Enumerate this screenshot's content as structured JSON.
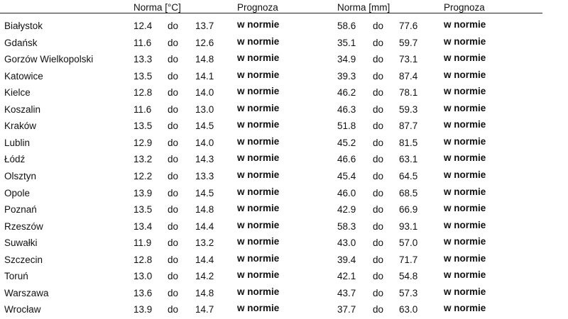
{
  "header": {
    "temp_norm": "Norma [°C]",
    "temp_forecast": "Prognoza",
    "precip_norm": "Norma [mm]",
    "precip_forecast": "Prognoza"
  },
  "range_word": "do",
  "rows": [
    {
      "city": "Białystok",
      "t_min": "12.4",
      "t_max": "13.7",
      "t_prog": "w normie",
      "p_min": "58.6",
      "p_max": "77.6",
      "p_prog": "w normie"
    },
    {
      "city": "Gdańsk",
      "t_min": "11.6",
      "t_max": "12.6",
      "t_prog": "w normie",
      "p_min": "35.1",
      "p_max": "59.7",
      "p_prog": "w normie"
    },
    {
      "city": "Gorzów Wielkopolski",
      "t_min": "13.3",
      "t_max": "14.8",
      "t_prog": "w normie",
      "p_min": "34.9",
      "p_max": "73.1",
      "p_prog": "w normie"
    },
    {
      "city": "Katowice",
      "t_min": "13.5",
      "t_max": "14.1",
      "t_prog": "w normie",
      "p_min": "39.3",
      "p_max": "87.4",
      "p_prog": "w normie"
    },
    {
      "city": "Kielce",
      "t_min": "12.8",
      "t_max": "14.0",
      "t_prog": "w normie",
      "p_min": "46.2",
      "p_max": "78.1",
      "p_prog": "w normie"
    },
    {
      "city": "Koszalin",
      "t_min": "11.6",
      "t_max": "13.0",
      "t_prog": "w normie",
      "p_min": "46.3",
      "p_max": "59.3",
      "p_prog": "w normie"
    },
    {
      "city": "Kraków",
      "t_min": "13.5",
      "t_max": "14.5",
      "t_prog": "w normie",
      "p_min": "51.8",
      "p_max": "87.7",
      "p_prog": "w normie"
    },
    {
      "city": "Lublin",
      "t_min": "12.9",
      "t_max": "14.0",
      "t_prog": "w normie",
      "p_min": "45.2",
      "p_max": "81.5",
      "p_prog": "w normie"
    },
    {
      "city": "Łódź",
      "t_min": "13.2",
      "t_max": "14.3",
      "t_prog": "w normie",
      "p_min": "46.6",
      "p_max": "63.1",
      "p_prog": "w normie"
    },
    {
      "city": "Olsztyn",
      "t_min": "12.2",
      "t_max": "13.3",
      "t_prog": "w normie",
      "p_min": "45.4",
      "p_max": "64.5",
      "p_prog": "w normie"
    },
    {
      "city": "Opole",
      "t_min": "13.9",
      "t_max": "14.5",
      "t_prog": "w normie",
      "p_min": "46.0",
      "p_max": "68.5",
      "p_prog": "w normie"
    },
    {
      "city": "Poznań",
      "t_min": "13.5",
      "t_max": "14.8",
      "t_prog": "w normie",
      "p_min": "42.9",
      "p_max": "66.9",
      "p_prog": "w normie"
    },
    {
      "city": "Rzeszów",
      "t_min": "13.4",
      "t_max": "14.4",
      "t_prog": "w normie",
      "p_min": "58.3",
      "p_max": "93.1",
      "p_prog": "w normie"
    },
    {
      "city": "Suwałki",
      "t_min": "11.9",
      "t_max": "13.2",
      "t_prog": "w normie",
      "p_min": "43.0",
      "p_max": "57.0",
      "p_prog": "w normie"
    },
    {
      "city": "Szczecin",
      "t_min": "12.8",
      "t_max": "14.4",
      "t_prog": "w normie",
      "p_min": "39.4",
      "p_max": "71.7",
      "p_prog": "w normie"
    },
    {
      "city": "Toruń",
      "t_min": "13.0",
      "t_max": "14.2",
      "t_prog": "w normie",
      "p_min": "42.1",
      "p_max": "54.8",
      "p_prog": "w normie"
    },
    {
      "city": "Warszawa",
      "t_min": "13.6",
      "t_max": "14.8",
      "t_prog": "w normie",
      "p_min": "43.7",
      "p_max": "57.3",
      "p_prog": "w normie"
    },
    {
      "city": "Wrocław",
      "t_min": "13.9",
      "t_max": "14.7",
      "t_prog": "w normie",
      "p_min": "37.7",
      "p_max": "63.0",
      "p_prog": "w normie"
    }
  ]
}
